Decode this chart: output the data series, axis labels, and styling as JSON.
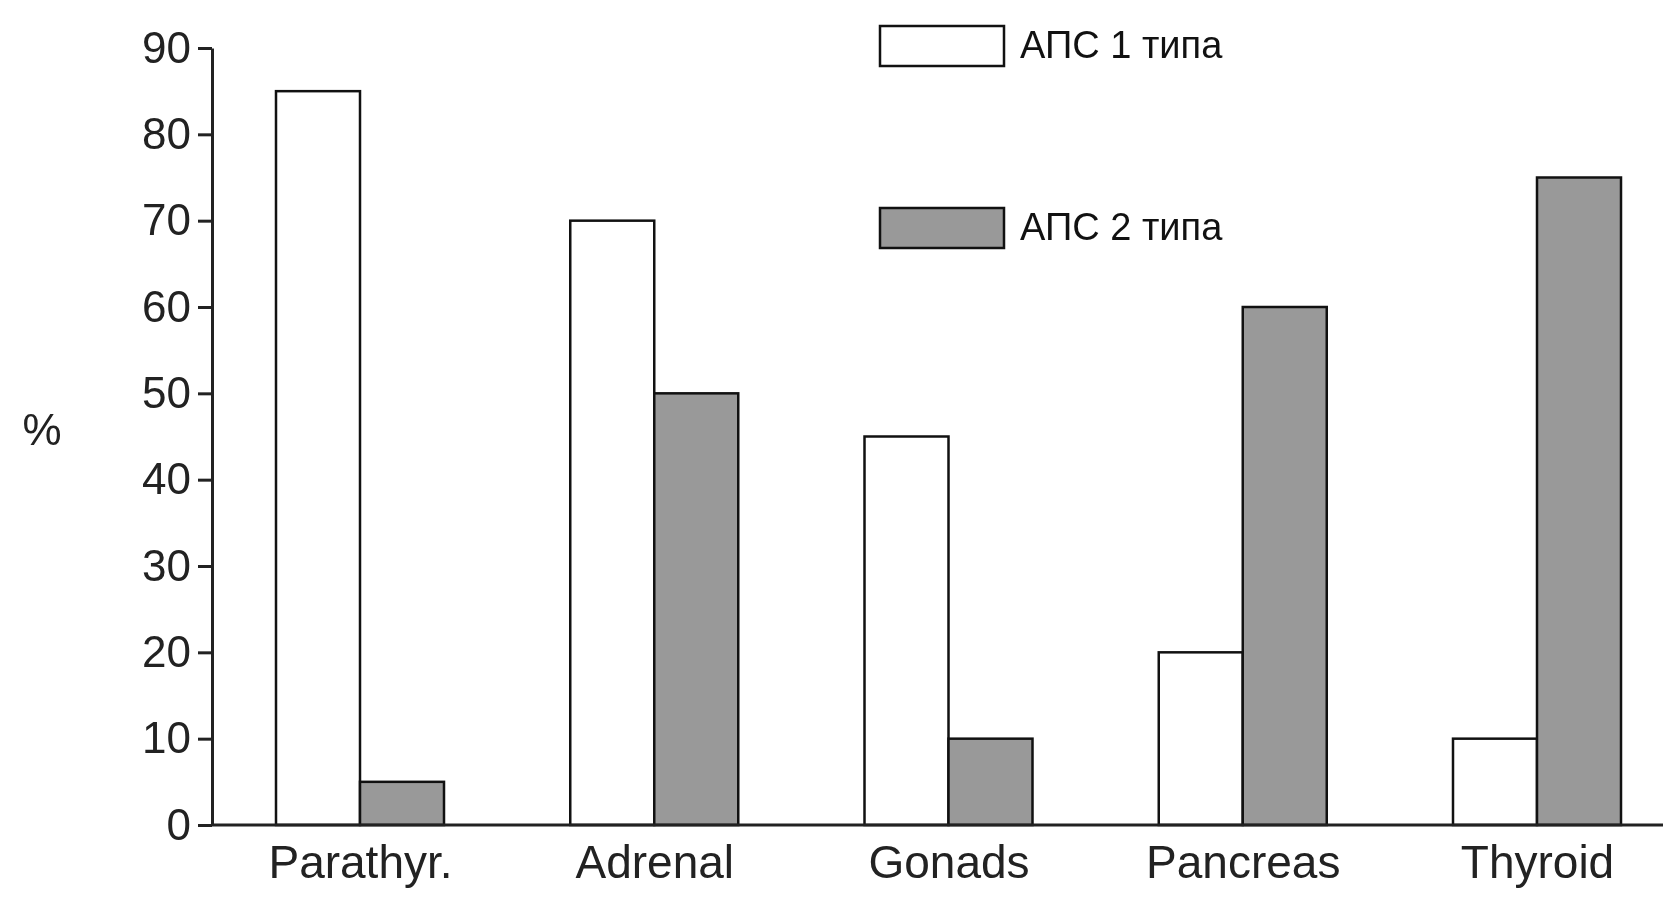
{
  "chart_data": {
    "type": "bar",
    "ylabel": "%",
    "categories": [
      "Parathyr.",
      "Adrenal",
      "Gonads",
      "Pancreas",
      "Thyroid"
    ],
    "series": [
      {
        "name": "АПС 1 типа",
        "color": "#ffffff",
        "values": [
          85,
          70,
          45,
          20,
          10
        ]
      },
      {
        "name": "АПС 2 типа",
        "color": "#999999",
        "values": [
          5,
          50,
          10,
          60,
          75
        ]
      }
    ],
    "ylim": [
      0,
      90
    ],
    "yticks": [
      0,
      10,
      20,
      30,
      40,
      50,
      60,
      70,
      80,
      90
    ],
    "grid": false,
    "legend": "top"
  }
}
